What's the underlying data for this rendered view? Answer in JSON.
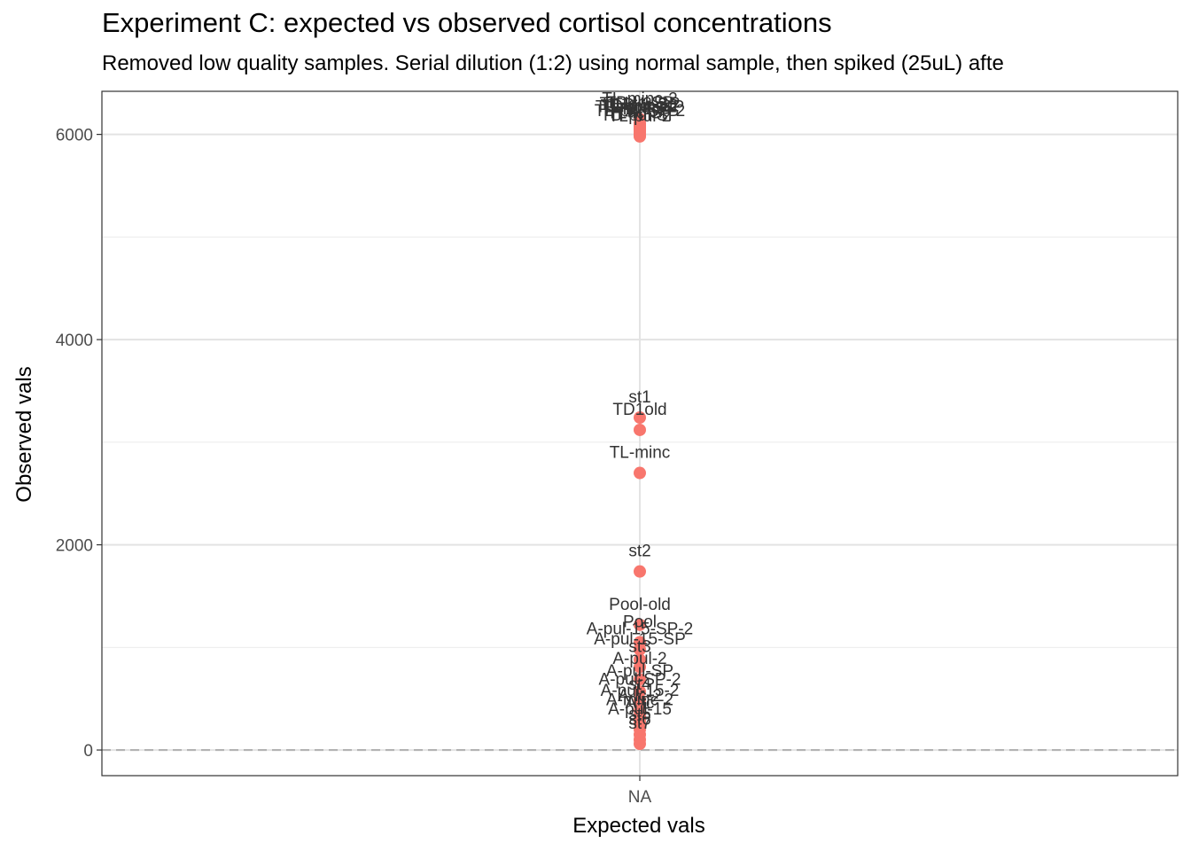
{
  "chart_data": {
    "type": "scatter",
    "title": "Experiment C: expected vs observed cortisol concentrations",
    "subtitle": "Removed low quality samples. Serial dilution (1:2) using normal sample, then spiked (25uL) afte",
    "xlabel": "Expected vals",
    "ylabel": "Observed vals",
    "x_categories": [
      "NA"
    ],
    "y_ticks": [
      0,
      2000,
      4000,
      6000
    ],
    "ylim": [
      -250,
      6420
    ],
    "grid": true,
    "reference_line_y": 0,
    "point_color": "#f8766d",
    "points": [
      {
        "label": "TL-minc-2",
        "x": "NA",
        "y": 6150
      },
      {
        "label": "TD-lc-SP",
        "x": "NA",
        "y": 6110
      },
      {
        "label": "TL-lc-2-SP",
        "x": "NA",
        "y": 6100
      },
      {
        "label": "TD-lc-2",
        "x": "NA",
        "y": 6090
      },
      {
        "label": "TD-minc-2",
        "x": "NA",
        "y": 6080
      },
      {
        "label": "TL-minc-SP",
        "x": "NA",
        "y": 6070
      },
      {
        "label": "TL-pul-SP",
        "x": "NA",
        "y": 6060
      },
      {
        "label": "TD-lc",
        "x": "NA",
        "y": 6050
      },
      {
        "label": "TL-pul-SP-2",
        "x": "NA",
        "y": 6030
      },
      {
        "label": "TL-lc-SP",
        "x": "NA",
        "y": 6010
      },
      {
        "label": "TD-pul-SP",
        "x": "NA",
        "y": 5990
      },
      {
        "label": "TL-pul-2",
        "x": "NA",
        "y": 5980
      },
      {
        "label": "st1",
        "x": "NA",
        "y": 3240
      },
      {
        "label": "TD1old",
        "x": "NA",
        "y": 3120
      },
      {
        "label": "TL-minc",
        "x": "NA",
        "y": 2700
      },
      {
        "label": "st2",
        "x": "NA",
        "y": 1740
      },
      {
        "label": "Pool-old",
        "x": "NA",
        "y": 1220
      },
      {
        "label": "Pool",
        "x": "NA",
        "y": 1050
      },
      {
        "label": "A-pul-15-SP-2",
        "x": "NA",
        "y": 980
      },
      {
        "label": "A-pul-15-SP",
        "x": "NA",
        "y": 880
      },
      {
        "label": "st3",
        "x": "NA",
        "y": 810
      },
      {
        "label": "A-pul-2",
        "x": "NA",
        "y": 690
      },
      {
        "label": "A-pul-SP",
        "x": "NA",
        "y": 570
      },
      {
        "label": "A-pul-SP-2",
        "x": "NA",
        "y": 490
      },
      {
        "label": "st4",
        "x": "NA",
        "y": 440
      },
      {
        "label": "A-pul-15-2",
        "x": "NA",
        "y": 380
      },
      {
        "label": "A-lc-2",
        "x": "NA",
        "y": 330
      },
      {
        "label": "A-minc-2",
        "x": "NA",
        "y": 290
      },
      {
        "label": "A-lc",
        "x": "NA",
        "y": 260
      },
      {
        "label": "A-pul-15",
        "x": "NA",
        "y": 200
      },
      {
        "label": "st5",
        "x": "NA",
        "y": 150
      },
      {
        "label": "st6",
        "x": "NA",
        "y": 100
      },
      {
        "label": "st7",
        "x": "NA",
        "y": 60
      }
    ]
  }
}
